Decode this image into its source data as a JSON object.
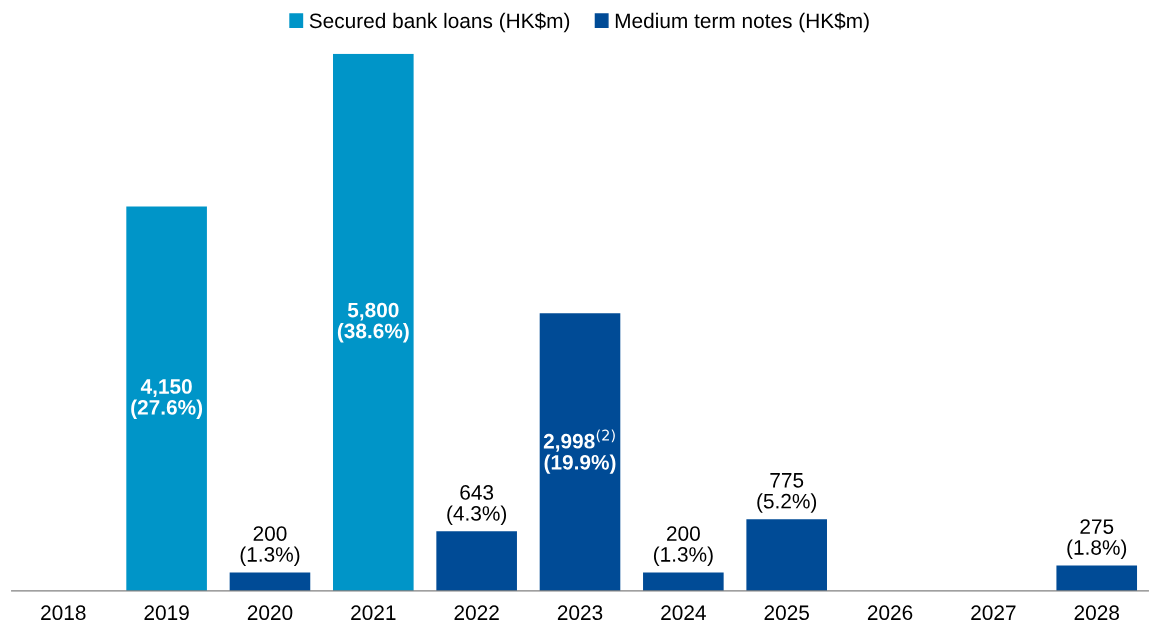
{
  "chart_data": {
    "type": "bar",
    "stacked": true,
    "legend": "top",
    "categories": [
      "2018",
      "2019",
      "2020",
      "2021",
      "2022",
      "2023",
      "2024",
      "2025",
      "2026",
      "2027",
      "2028"
    ],
    "series": [
      {
        "name": "Secured bank loans (HK$m)",
        "color": "#0095c8",
        "values": [
          null,
          4150,
          null,
          5800,
          null,
          null,
          null,
          null,
          null,
          null,
          null
        ],
        "value_labels": [
          null,
          "4,150\n(27.6%)",
          null,
          "5,800\n(38.6%)",
          null,
          null,
          null,
          null,
          null,
          null,
          null
        ]
      },
      {
        "name": "Medium term notes (HK$m)",
        "color": "#004b96",
        "values": [
          null,
          null,
          200,
          null,
          643,
          2998,
          200,
          775,
          null,
          null,
          275
        ],
        "value_labels": [
          null,
          null,
          "200\n(1.3%)",
          null,
          "643\n(4.3%)",
          "2,998$^{(2)}$\n(19.9%)",
          "200\n(1.3%)",
          "775\n(5.2%)",
          null,
          null,
          "275\n(1.8%)"
        ]
      }
    ]
  }
}
